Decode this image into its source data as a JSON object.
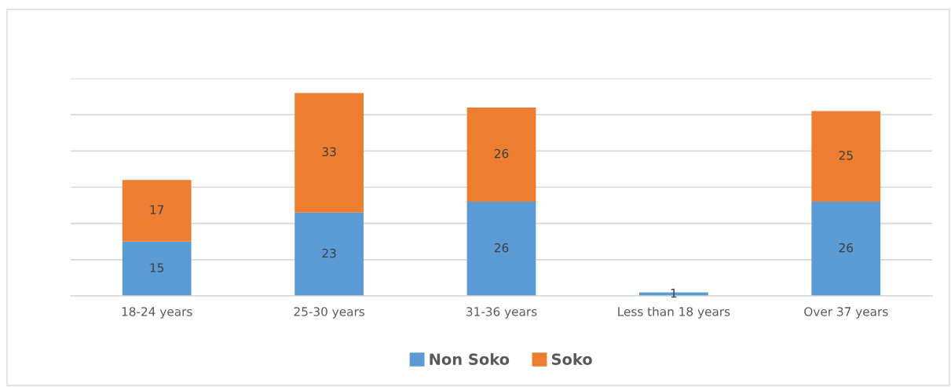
{
  "chart_data": {
    "type": "bar",
    "stacked": true,
    "categories": [
      "18-24 years",
      "25-30 years",
      "31-36 years",
      "Less than 18 years",
      "Over 37 years"
    ],
    "series": [
      {
        "name": "Non Soko",
        "color": "#5b9bd5",
        "values": [
          15,
          23,
          26,
          1,
          26
        ]
      },
      {
        "name": "Soko",
        "color": "#ed7d31",
        "values": [
          17,
          33,
          26,
          null,
          25
        ]
      }
    ],
    "ylim": [
      0,
      60
    ],
    "yticks": [
      {
        "value": 0,
        "label": null
      },
      {
        "value": 10,
        "label": null
      },
      {
        "value": 20,
        "label": null
      },
      {
        "value": 30,
        "label": null
      },
      {
        "value": 40,
        "label": null
      },
      {
        "value": 50,
        "label": null
      },
      {
        "value": 60,
        "label": null
      }
    ],
    "tick_labels": "x",
    "grid": "y",
    "legend": "bottom",
    "data_labels": true
  }
}
